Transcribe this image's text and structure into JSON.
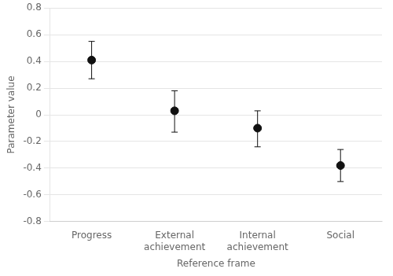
{
  "chart_data": {
    "type": "errorbar",
    "categories": [
      "Progress",
      "External\nachievement",
      "Internal\nachievement",
      "Social"
    ],
    "values": [
      0.41,
      0.03,
      -0.1,
      -0.38
    ],
    "errors_upper": [
      0.14,
      0.15,
      0.13,
      0.12
    ],
    "errors_lower": [
      0.14,
      0.16,
      0.14,
      0.12
    ],
    "xlabel": "Reference frame",
    "ylabel": "Parameter value",
    "ylim": [
      -0.8,
      0.8
    ],
    "yticks": [
      -0.8,
      -0.6,
      -0.4,
      -0.2,
      0,
      0.2,
      0.4,
      0.6,
      0.8
    ],
    "color": "#111111",
    "marker": "circle",
    "grid": true
  }
}
